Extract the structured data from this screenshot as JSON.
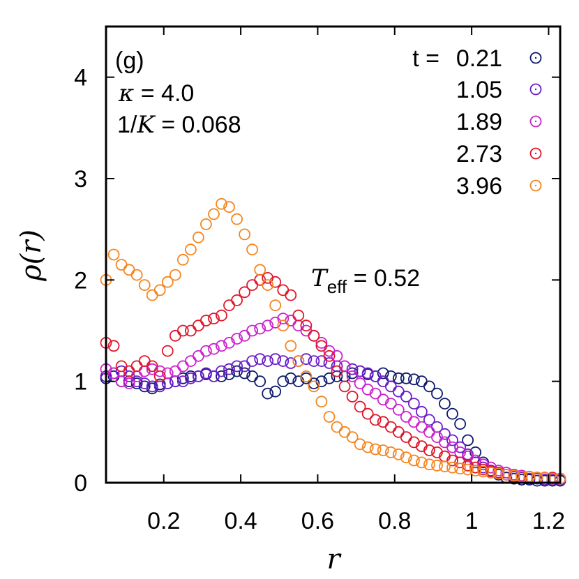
{
  "chart_data": {
    "type": "scatter",
    "panel_label": "(g)",
    "xlabel": "r",
    "ylabel": "ρ(r)",
    "xlim": [
      0.05,
      1.23
    ],
    "ylim": [
      0,
      4.5
    ],
    "xticks": [
      "0.2",
      "0.4",
      "0.6",
      "0.8",
      "1",
      "1.2"
    ],
    "yticks": [
      "0",
      "1",
      "2",
      "3",
      "4"
    ],
    "grid": false,
    "legend_placement": "top-right",
    "legend_title": "t =",
    "annotations": {
      "kappa_symbol": "κ",
      "kappa_value": " = 4.0",
      "invK_prefix": "1/",
      "invK_symbol": "K",
      "invK_value": " = 0.068",
      "teff_symbol": "T",
      "teff_sub": "eff",
      "teff_value": " = 0.52"
    },
    "series": [
      {
        "name": "0.21",
        "color": "#0d1a6b",
        "x": [
          0.05,
          0.07,
          0.09,
          0.11,
          0.13,
          0.15,
          0.17,
          0.19,
          0.21,
          0.23,
          0.25,
          0.27,
          0.29,
          0.31,
          0.33,
          0.35,
          0.37,
          0.39,
          0.41,
          0.43,
          0.45,
          0.47,
          0.49,
          0.51,
          0.53,
          0.55,
          0.57,
          0.59,
          0.61,
          0.63,
          0.65,
          0.67,
          0.69,
          0.71,
          0.73,
          0.75,
          0.77,
          0.79,
          0.81,
          0.83,
          0.85,
          0.87,
          0.89,
          0.91,
          0.93,
          0.95,
          0.97,
          0.99,
          1.01,
          1.03,
          1.05,
          1.07,
          1.09,
          1.11,
          1.13,
          1.15,
          1.17,
          1.19,
          1.21,
          1.23
        ],
        "y": [
          1.03,
          1.05,
          1.0,
          1.0,
          0.98,
          0.95,
          0.93,
          0.97,
          0.98,
          1.0,
          1.03,
          1.05,
          1.05,
          1.07,
          1.05,
          1.05,
          1.07,
          1.1,
          1.08,
          1.05,
          1.0,
          0.88,
          0.9,
          1.0,
          1.03,
          1.0,
          1.03,
          0.98,
          1.0,
          1.03,
          1.05,
          1.05,
          1.08,
          1.1,
          1.07,
          1.05,
          1.08,
          1.05,
          1.03,
          1.03,
          1.02,
          1.0,
          0.95,
          0.88,
          0.78,
          0.68,
          0.58,
          0.42,
          0.3,
          0.2,
          0.12,
          0.08,
          0.05,
          0.04,
          0.03,
          0.03,
          0.02,
          0.02,
          0.02,
          0.02
        ]
      },
      {
        "name": "1.05",
        "color": "#6a1fc9",
        "x": [
          0.05,
          0.07,
          0.09,
          0.11,
          0.13,
          0.15,
          0.17,
          0.19,
          0.21,
          0.23,
          0.25,
          0.27,
          0.29,
          0.31,
          0.33,
          0.35,
          0.37,
          0.39,
          0.41,
          0.43,
          0.45,
          0.47,
          0.49,
          0.51,
          0.53,
          0.55,
          0.57,
          0.59,
          0.61,
          0.63,
          0.65,
          0.67,
          0.69,
          0.71,
          0.73,
          0.75,
          0.77,
          0.79,
          0.81,
          0.83,
          0.85,
          0.87,
          0.89,
          0.91,
          0.93,
          0.95,
          0.97,
          0.99,
          1.01,
          1.03,
          1.05,
          1.07,
          1.09,
          1.11,
          1.13,
          1.15,
          1.17,
          1.19,
          1.21,
          1.23
        ],
        "y": [
          1.05,
          1.08,
          1.1,
          1.05,
          1.0,
          0.98,
          0.95,
          0.95,
          0.98,
          1.0,
          1.0,
          1.03,
          1.05,
          1.08,
          1.05,
          1.1,
          1.12,
          1.15,
          1.15,
          1.2,
          1.22,
          1.2,
          1.22,
          1.2,
          1.18,
          1.2,
          1.22,
          1.2,
          1.2,
          1.18,
          1.15,
          1.15,
          1.12,
          1.1,
          1.08,
          1.05,
          1.0,
          0.95,
          0.9,
          0.85,
          0.78,
          0.7,
          0.62,
          0.55,
          0.48,
          0.42,
          0.35,
          0.28,
          0.2,
          0.15,
          0.12,
          0.1,
          0.08,
          0.06,
          0.05,
          0.04,
          0.04,
          0.03,
          0.03,
          0.03
        ]
      },
      {
        "name": "1.89",
        "color": "#cc22cc",
        "x": [
          0.05,
          0.07,
          0.09,
          0.11,
          0.13,
          0.15,
          0.17,
          0.19,
          0.21,
          0.23,
          0.25,
          0.27,
          0.29,
          0.31,
          0.33,
          0.35,
          0.37,
          0.39,
          0.41,
          0.43,
          0.45,
          0.47,
          0.49,
          0.51,
          0.53,
          0.55,
          0.57,
          0.59,
          0.61,
          0.63,
          0.65,
          0.67,
          0.69,
          0.71,
          0.73,
          0.75,
          0.77,
          0.79,
          0.81,
          0.83,
          0.85,
          0.87,
          0.89,
          0.91,
          0.93,
          0.95,
          0.97,
          0.99,
          1.01,
          1.03,
          1.05,
          1.07,
          1.09,
          1.11,
          1.13,
          1.15,
          1.17,
          1.19,
          1.21,
          1.23
        ],
        "y": [
          1.12,
          1.08,
          1.0,
          0.98,
          1.05,
          1.1,
          1.12,
          1.1,
          1.08,
          1.1,
          1.15,
          1.2,
          1.25,
          1.3,
          1.32,
          1.35,
          1.38,
          1.42,
          1.45,
          1.5,
          1.52,
          1.55,
          1.58,
          1.62,
          1.6,
          1.55,
          1.5,
          1.45,
          1.38,
          1.3,
          1.25,
          1.15,
          1.05,
          0.98,
          0.92,
          0.88,
          0.82,
          0.78,
          0.72,
          0.65,
          0.6,
          0.55,
          0.5,
          0.45,
          0.4,
          0.35,
          0.3,
          0.26,
          0.22,
          0.18,
          0.15,
          0.12,
          0.1,
          0.08,
          0.07,
          0.06,
          0.05,
          0.05,
          0.04,
          0.04
        ]
      },
      {
        "name": "2.73",
        "color": "#e0162b",
        "x": [
          0.05,
          0.07,
          0.09,
          0.11,
          0.13,
          0.15,
          0.17,
          0.19,
          0.21,
          0.23,
          0.25,
          0.27,
          0.29,
          0.31,
          0.33,
          0.35,
          0.37,
          0.39,
          0.41,
          0.43,
          0.45,
          0.47,
          0.49,
          0.51,
          0.53,
          0.55,
          0.57,
          0.59,
          0.61,
          0.63,
          0.65,
          0.67,
          0.69,
          0.71,
          0.73,
          0.75,
          0.77,
          0.79,
          0.81,
          0.83,
          0.85,
          0.87,
          0.89,
          0.91,
          0.93,
          0.95,
          0.97,
          0.99,
          1.01,
          1.03,
          1.05,
          1.07,
          1.09,
          1.11,
          1.13,
          1.15,
          1.17,
          1.19,
          1.21,
          1.23
        ],
        "y": [
          1.38,
          1.35,
          1.15,
          1.1,
          1.15,
          1.2,
          1.15,
          1.05,
          1.3,
          1.45,
          1.5,
          1.5,
          1.55,
          1.6,
          1.62,
          1.65,
          1.75,
          1.8,
          1.88,
          1.95,
          2.0,
          2.02,
          1.98,
          1.9,
          1.85,
          1.65,
          1.55,
          1.45,
          1.35,
          1.25,
          1.1,
          0.95,
          0.85,
          0.75,
          0.68,
          0.62,
          0.6,
          0.55,
          0.5,
          0.45,
          0.4,
          0.36,
          0.32,
          0.3,
          0.26,
          0.22,
          0.2,
          0.17,
          0.15,
          0.13,
          0.11,
          0.1,
          0.08,
          0.07,
          0.06,
          0.06,
          0.05,
          0.05,
          0.05,
          0.04
        ]
      },
      {
        "name": "3.96",
        "color": "#f5851f",
        "x": [
          0.05,
          0.07,
          0.09,
          0.11,
          0.13,
          0.15,
          0.17,
          0.19,
          0.21,
          0.23,
          0.25,
          0.27,
          0.29,
          0.31,
          0.33,
          0.35,
          0.37,
          0.39,
          0.41,
          0.43,
          0.45,
          0.47,
          0.49,
          0.51,
          0.53,
          0.55,
          0.57,
          0.59,
          0.61,
          0.63,
          0.65,
          0.67,
          0.69,
          0.71,
          0.73,
          0.75,
          0.77,
          0.79,
          0.81,
          0.83,
          0.85,
          0.87,
          0.89,
          0.91,
          0.93,
          0.95,
          0.97,
          0.99,
          1.01,
          1.03,
          1.05,
          1.07,
          1.09,
          1.11,
          1.13,
          1.15,
          1.17,
          1.19,
          1.21,
          1.23
        ],
        "y": [
          2.0,
          2.25,
          2.15,
          2.1,
          2.05,
          1.95,
          1.85,
          1.9,
          1.98,
          2.05,
          2.2,
          2.3,
          2.42,
          2.55,
          2.65,
          2.75,
          2.72,
          2.6,
          2.45,
          2.3,
          2.1,
          1.95,
          1.75,
          1.55,
          1.35,
          1.2,
          1.05,
          0.95,
          0.8,
          0.65,
          0.55,
          0.5,
          0.45,
          0.38,
          0.35,
          0.33,
          0.32,
          0.3,
          0.28,
          0.25,
          0.22,
          0.2,
          0.18,
          0.17,
          0.16,
          0.15,
          0.14,
          0.13,
          0.12,
          0.11,
          0.1,
          0.09,
          0.08,
          0.07,
          0.06,
          0.06,
          0.05,
          0.05,
          0.04,
          0.04
        ]
      }
    ]
  }
}
